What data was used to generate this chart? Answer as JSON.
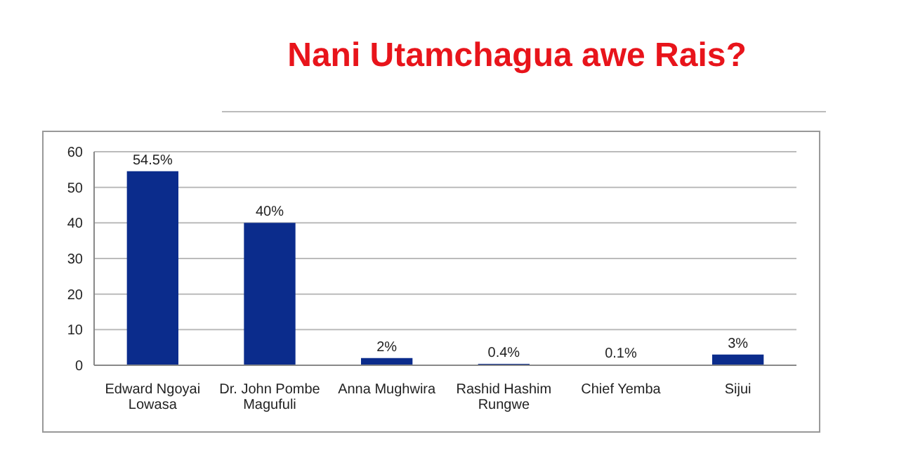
{
  "chart_data": {
    "type": "bar",
    "title": "Nani Utamchagua awe Rais?",
    "categories": [
      "Edward Ngoyai Lowasa",
      "Dr. John Pombe Magufuli",
      "Anna Mughwira",
      "Rashid Hashim Rungwe",
      "Chief Yemba",
      "Sijui"
    ],
    "values": [
      54.5,
      40,
      2,
      0.4,
      0.1,
      3
    ],
    "value_labels": [
      "54.5%",
      "40%",
      "2%",
      "0.4%",
      "0.1%",
      "3%"
    ],
    "color": "#0b2c8c",
    "ylim": [
      0,
      60
    ],
    "yticks": [
      0,
      10,
      20,
      30,
      40,
      50,
      60
    ],
    "grid": "y"
  }
}
